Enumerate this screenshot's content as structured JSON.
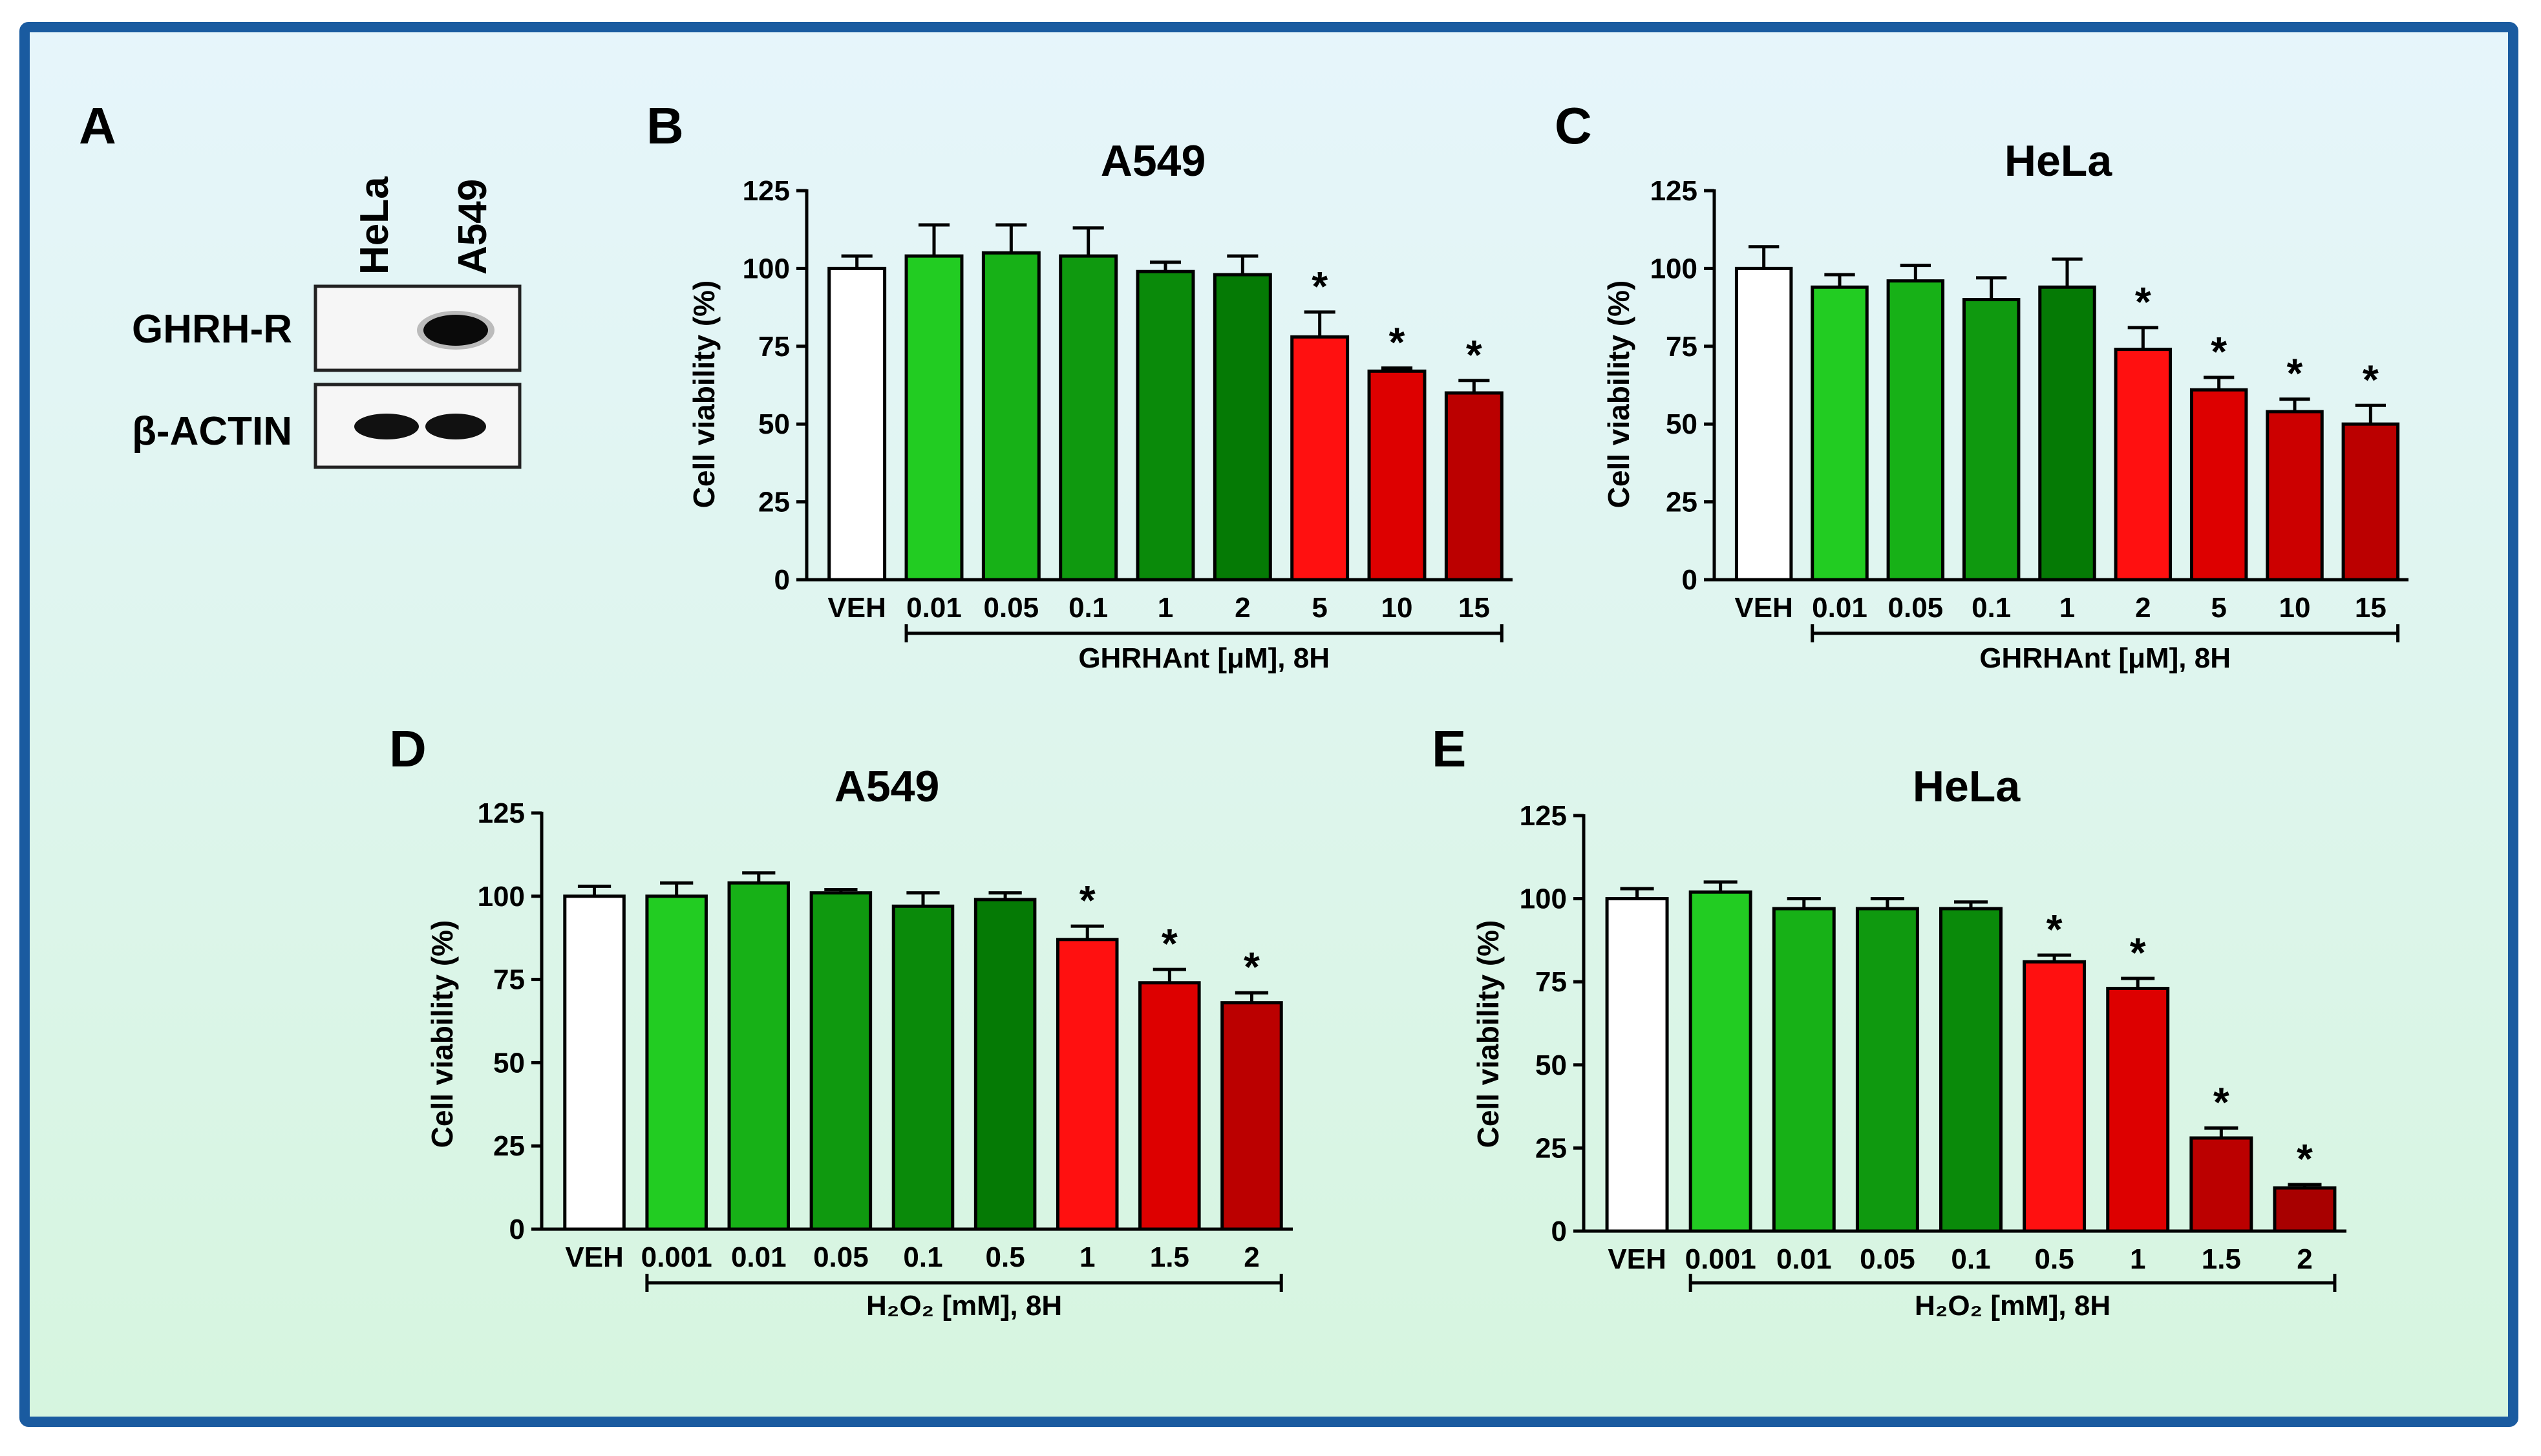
{
  "colors": {
    "border": "#1a5ba0",
    "bg_top": "#e6f5fb",
    "bg_bottom": "#d6f5df",
    "veh": "#ffffff",
    "greens": [
      "#22cc22",
      "#17b117",
      "#0f990f",
      "#0a8a0a",
      "#057a05"
    ],
    "reds": [
      "#ff1010",
      "#dd0000",
      "#bb0000",
      "#a80000"
    ]
  },
  "blot": {
    "panel_letter": "A",
    "lanes": [
      "HeLa",
      "A549"
    ],
    "rows": [
      "GHRH-R",
      "β-ACTIN"
    ]
  },
  "chart_data": [
    {
      "id": "B",
      "type": "bar",
      "panel_letter": "B",
      "title": "A549",
      "ylabel": "Cell viability (%)",
      "xlabel": "GHRHAnt [μM], 8H",
      "ylim": [
        0,
        125
      ],
      "yticks": [
        "0",
        "25",
        "50",
        "75",
        "100",
        "125"
      ],
      "categories": [
        "VEH",
        "0.01",
        "0.05",
        "0.1",
        "1",
        "2",
        "5",
        "10",
        "15"
      ],
      "values": [
        100,
        104,
        105,
        104,
        99,
        98,
        78,
        67,
        60
      ],
      "errors": [
        4,
        10,
        9,
        9,
        3,
        6,
        8,
        1,
        4
      ],
      "colors": [
        "#ffffff",
        "#22cc22",
        "#17b117",
        "#0f990f",
        "#0a8a0a",
        "#057a05",
        "#ff1010",
        "#dd0000",
        "#bb0000"
      ],
      "significant": [
        "",
        "",
        "",
        "",
        "",
        "",
        "*",
        "*",
        "*"
      ],
      "bracket_from": 1,
      "bracket_to": 8
    },
    {
      "id": "C",
      "type": "bar",
      "panel_letter": "C",
      "title": "HeLa",
      "ylabel": "Cell viability (%)",
      "xlabel": "GHRHAnt [μM], 8H",
      "ylim": [
        0,
        125
      ],
      "yticks": [
        "0",
        "25",
        "50",
        "75",
        "100",
        "125"
      ],
      "categories": [
        "VEH",
        "0.01",
        "0.05",
        "0.1",
        "1",
        "2",
        "5",
        "10",
        "15"
      ],
      "values": [
        100,
        94,
        96,
        90,
        94,
        74,
        61,
        54,
        50
      ],
      "errors": [
        7,
        4,
        5,
        7,
        9,
        7,
        4,
        4,
        6
      ],
      "colors": [
        "#ffffff",
        "#22cc22",
        "#17b117",
        "#0f990f",
        "#057a05",
        "#ff1010",
        "#dd0000",
        "#cc0000",
        "#bb0000"
      ],
      "significant": [
        "",
        "",
        "",
        "",
        "",
        "*",
        "*",
        "*",
        "*"
      ],
      "bracket_from": 1,
      "bracket_to": 8
    },
    {
      "id": "D",
      "type": "bar",
      "panel_letter": "D",
      "title": "A549",
      "ylabel": "Cell viability (%)",
      "xlabel": "H₂O₂ [mM], 8H",
      "ylim": [
        0,
        125
      ],
      "yticks": [
        "0",
        "25",
        "50",
        "75",
        "100",
        "125"
      ],
      "categories": [
        "VEH",
        "0.001",
        "0.01",
        "0.05",
        "0.1",
        "0.5",
        "1",
        "1.5",
        "2"
      ],
      "values": [
        100,
        100,
        104,
        101,
        97,
        99,
        87,
        74,
        68
      ],
      "errors": [
        3,
        4,
        3,
        1,
        4,
        2,
        4,
        4,
        3
      ],
      "colors": [
        "#ffffff",
        "#22cc22",
        "#17b117",
        "#0f990f",
        "#0a8a0a",
        "#057a05",
        "#ff1010",
        "#dd0000",
        "#bb0000"
      ],
      "significant": [
        "",
        "",
        "",
        "",
        "",
        "",
        "*",
        "*",
        "*"
      ],
      "bracket_from": 1,
      "bracket_to": 8
    },
    {
      "id": "E",
      "type": "bar",
      "panel_letter": "E",
      "title": "HeLa",
      "ylabel": "Cell viability (%)",
      "xlabel": "H₂O₂ [mM], 8H",
      "ylim": [
        0,
        125
      ],
      "yticks": [
        "0",
        "25",
        "50",
        "75",
        "100",
        "125"
      ],
      "categories": [
        "VEH",
        "0.001",
        "0.01",
        "0.05",
        "0.1",
        "0.5",
        "1",
        "1.5",
        "2"
      ],
      "values": [
        100,
        102,
        97,
        97,
        97,
        81,
        73,
        28,
        13
      ],
      "errors": [
        3,
        3,
        3,
        3,
        2,
        2,
        3,
        3,
        1
      ],
      "colors": [
        "#ffffff",
        "#22cc22",
        "#17b117",
        "#0f990f",
        "#0a8a0a",
        "#ff1010",
        "#dd0000",
        "#bb0000",
        "#a80000"
      ],
      "significant": [
        "",
        "",
        "",
        "",
        "",
        "*",
        "*",
        "*",
        "*"
      ],
      "bracket_from": 1,
      "bracket_to": 8
    }
  ]
}
